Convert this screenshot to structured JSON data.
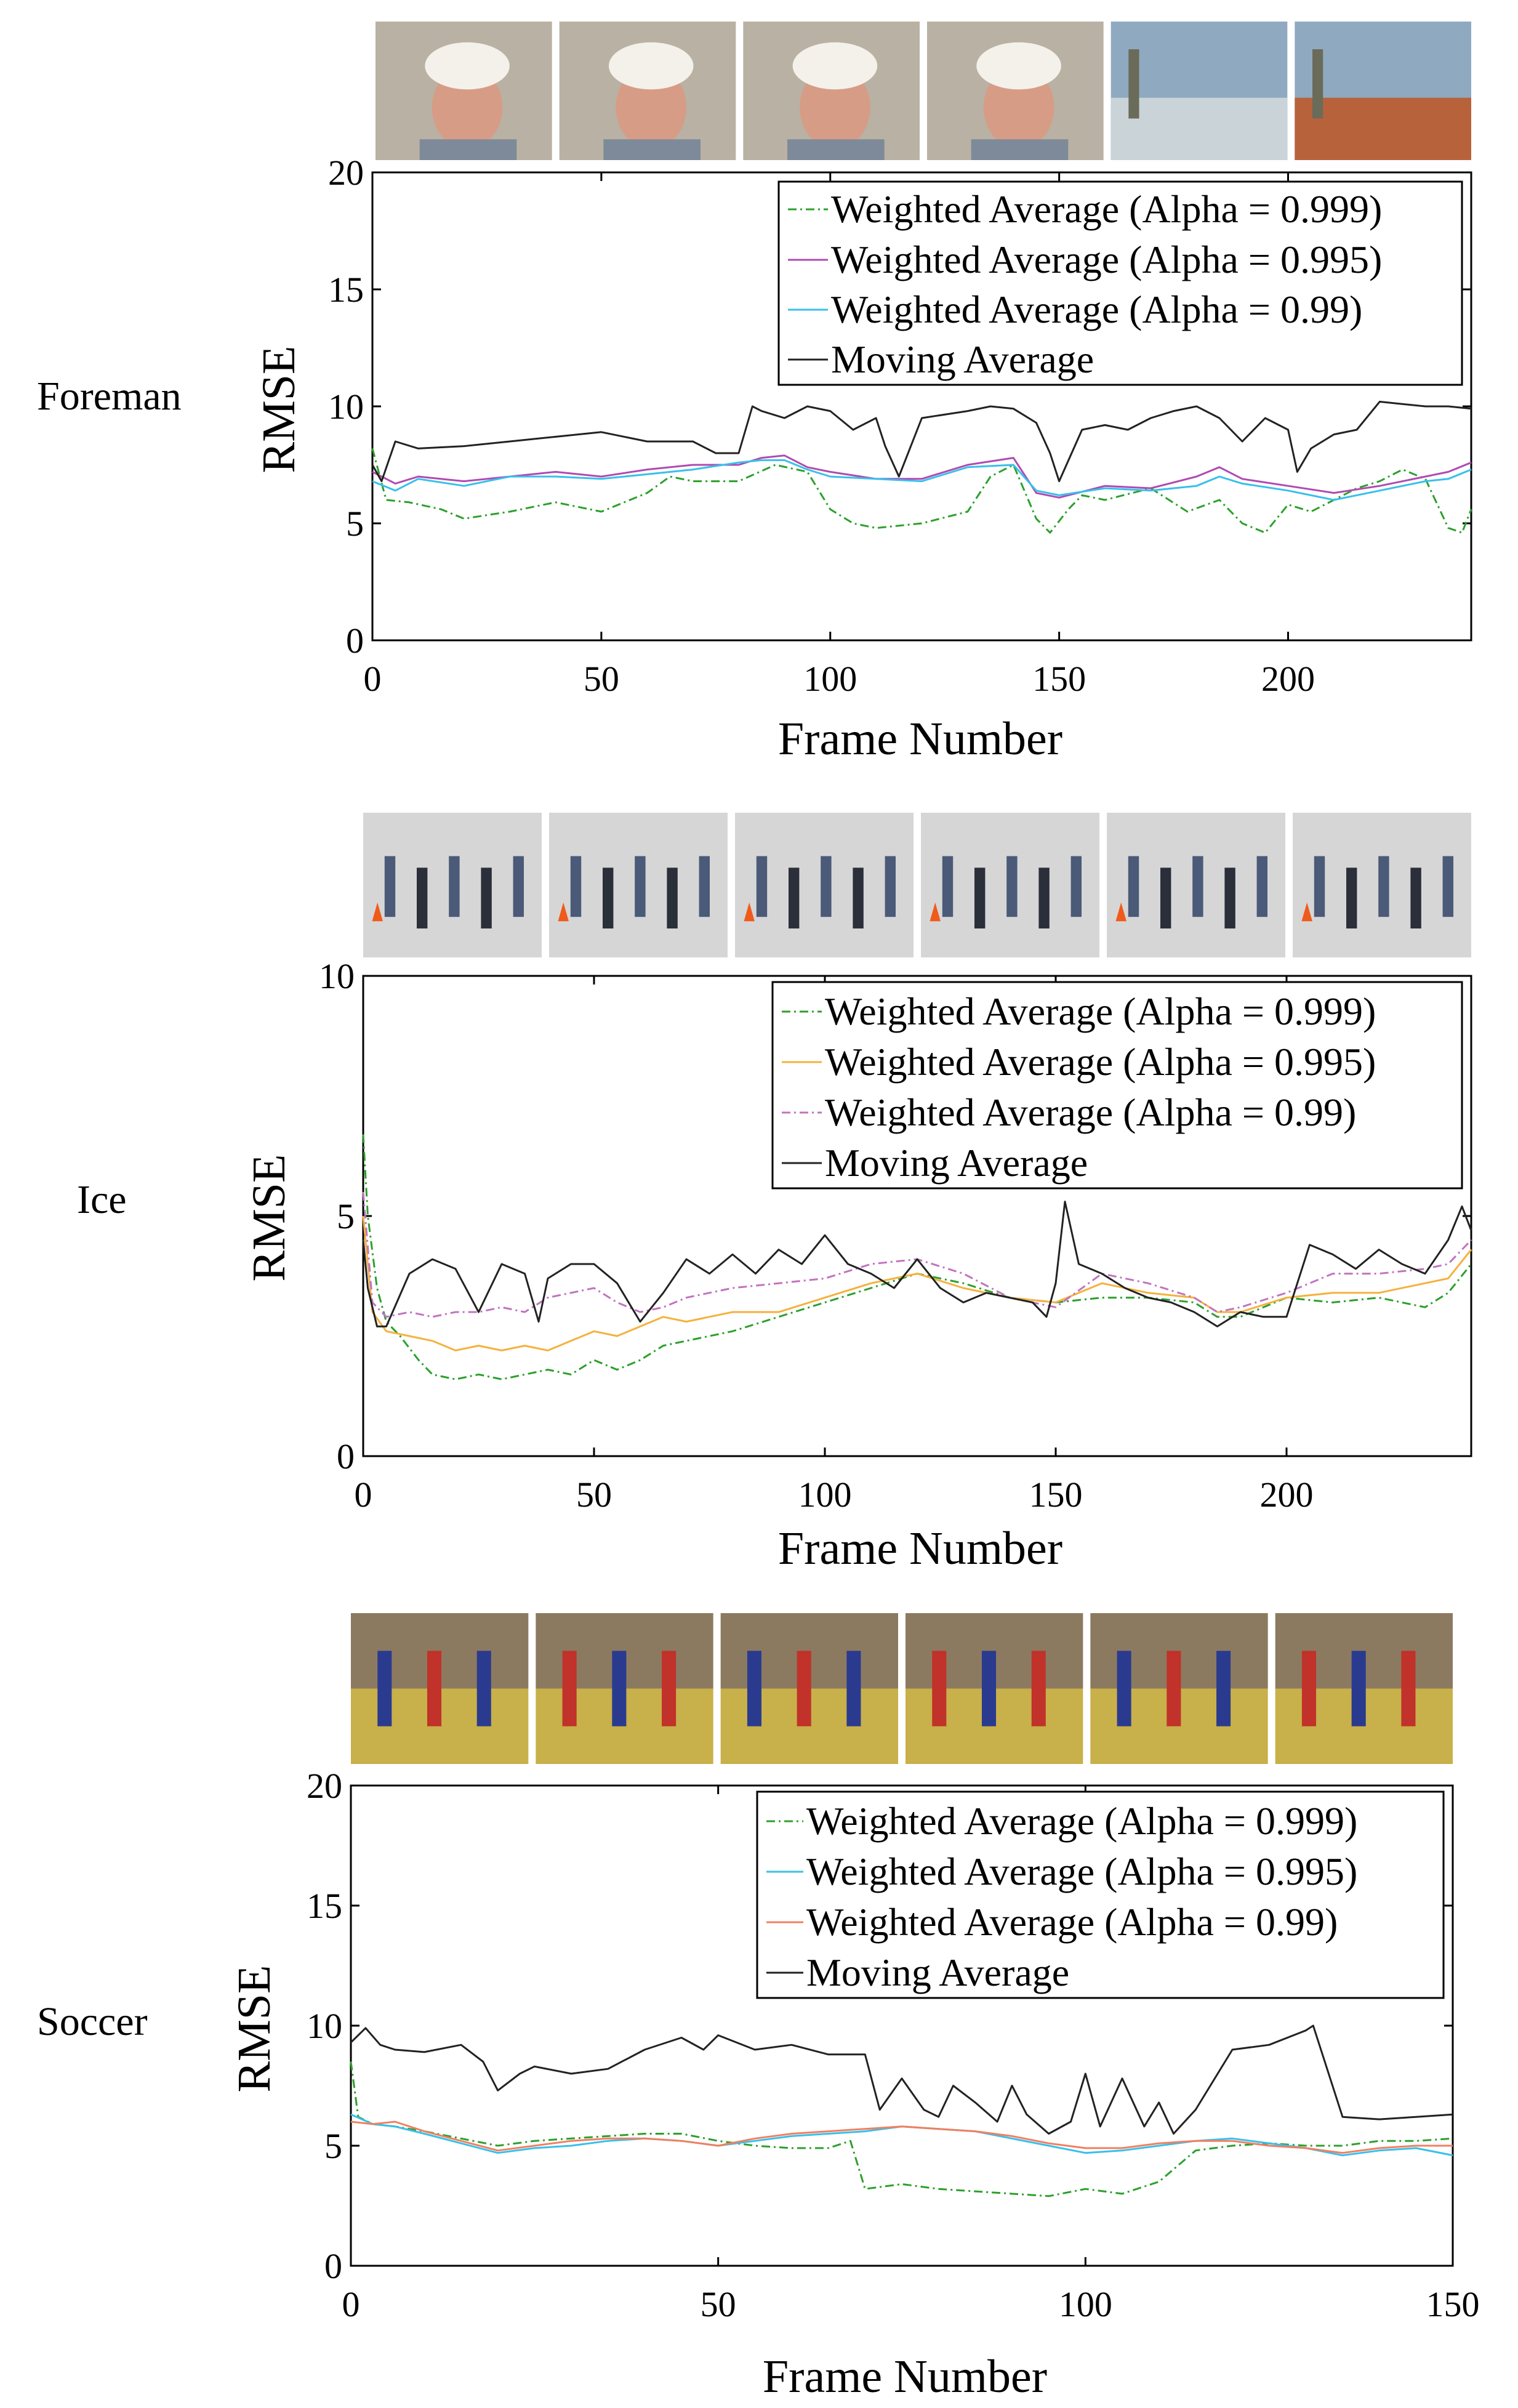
{
  "chart_data": [
    {
      "type": "line",
      "sequence_label": "Foreman",
      "xlabel": "Frame Number",
      "ylabel": "RMSE",
      "xlim": [
        0,
        240
      ],
      "ylim": [
        0,
        20
      ],
      "xticks": [
        0,
        50,
        100,
        150,
        200
      ],
      "yticks": [
        0,
        5,
        10,
        15,
        20
      ],
      "grid": false,
      "legend_position": "top-right",
      "thumbnails": [
        "foreman-frame-1",
        "foreman-frame-2",
        "foreman-frame-3",
        "foreman-frame-4",
        "foreman-frame-5",
        "foreman-frame-6"
      ],
      "series": [
        {
          "name": "Weighted Average (Alpha = 0.999)",
          "color": "#2ca02c",
          "style": "dashdot",
          "x": [
            0,
            3,
            8,
            15,
            20,
            30,
            40,
            50,
            60,
            65,
            70,
            80,
            88,
            95,
            100,
            105,
            110,
            120,
            130,
            135,
            140,
            145,
            148,
            152,
            155,
            160,
            170,
            178,
            185,
            190,
            195,
            200,
            205,
            210,
            215,
            220,
            225,
            230,
            235,
            238,
            240
          ],
          "y": [
            8.2,
            6.0,
            5.9,
            5.6,
            5.2,
            5.5,
            5.9,
            5.5,
            6.3,
            7.0,
            6.8,
            6.8,
            7.5,
            7.2,
            5.6,
            5.0,
            4.8,
            5.0,
            5.5,
            7.0,
            7.5,
            5.2,
            4.6,
            5.6,
            6.2,
            6.0,
            6.5,
            5.5,
            6.0,
            5.0,
            4.6,
            5.8,
            5.5,
            6.0,
            6.5,
            6.8,
            7.3,
            6.9,
            4.8,
            4.6,
            5.6
          ]
        },
        {
          "name": "Weighted Average (Alpha = 0.995)",
          "color": "#b04ab0",
          "style": "solid",
          "x": [
            0,
            5,
            10,
            20,
            30,
            40,
            50,
            60,
            70,
            80,
            85,
            90,
            95,
            100,
            110,
            120,
            130,
            140,
            145,
            150,
            160,
            170,
            180,
            185,
            190,
            200,
            210,
            220,
            230,
            235,
            240
          ],
          "y": [
            7.2,
            6.7,
            7.0,
            6.8,
            7.0,
            7.2,
            7.0,
            7.3,
            7.5,
            7.5,
            7.8,
            7.9,
            7.4,
            7.2,
            6.9,
            6.9,
            7.5,
            7.8,
            6.3,
            6.1,
            6.6,
            6.5,
            7.0,
            7.4,
            6.9,
            6.6,
            6.3,
            6.6,
            7.0,
            7.2,
            7.6
          ]
        },
        {
          "name": "Weighted Average (Alpha = 0.99)",
          "color": "#38c0ea",
          "style": "solid",
          "x": [
            0,
            5,
            10,
            20,
            30,
            40,
            50,
            60,
            70,
            80,
            85,
            90,
            95,
            100,
            110,
            120,
            130,
            140,
            145,
            150,
            160,
            170,
            180,
            185,
            190,
            200,
            210,
            220,
            230,
            235,
            240
          ],
          "y": [
            6.8,
            6.4,
            6.9,
            6.6,
            7.0,
            7.0,
            6.9,
            7.1,
            7.3,
            7.6,
            7.7,
            7.7,
            7.3,
            7.0,
            6.9,
            6.8,
            7.4,
            7.5,
            6.4,
            6.2,
            6.5,
            6.4,
            6.6,
            7.0,
            6.7,
            6.4,
            6.0,
            6.4,
            6.8,
            6.9,
            7.3
          ]
        },
        {
          "name": "Moving Average",
          "color": "#222222",
          "style": "solid",
          "x": [
            0,
            2,
            5,
            10,
            20,
            30,
            40,
            50,
            60,
            70,
            75,
            80,
            83,
            85,
            90,
            95,
            100,
            105,
            110,
            112,
            115,
            120,
            130,
            135,
            140,
            145,
            148,
            150,
            155,
            160,
            165,
            170,
            175,
            180,
            185,
            190,
            195,
            200,
            202,
            205,
            210,
            215,
            220,
            225,
            230,
            235,
            240
          ],
          "y": [
            7.5,
            6.8,
            8.5,
            8.2,
            8.3,
            8.5,
            8.7,
            8.9,
            8.5,
            8.5,
            8.0,
            8.0,
            10.0,
            9.8,
            9.5,
            10.0,
            9.8,
            9.0,
            9.5,
            8.3,
            7.0,
            9.5,
            9.8,
            10.0,
            9.9,
            9.3,
            8.0,
            6.8,
            9.0,
            9.2,
            9.0,
            9.5,
            9.8,
            10.0,
            9.5,
            8.5,
            9.5,
            9.0,
            7.2,
            8.2,
            8.8,
            9.0,
            10.2,
            10.1,
            10.0,
            10.0,
            9.9
          ]
        }
      ]
    },
    {
      "type": "line",
      "sequence_label": "Ice",
      "xlabel": "Frame Number",
      "ylabel": "RMSE",
      "xlim": [
        0,
        240
      ],
      "ylim": [
        0,
        10
      ],
      "xticks": [
        0,
        50,
        100,
        150,
        200
      ],
      "yticks": [
        0,
        5,
        10
      ],
      "grid": false,
      "legend_position": "top-right",
      "thumbnails": [
        "ice-frame-1",
        "ice-frame-2",
        "ice-frame-3",
        "ice-frame-4",
        "ice-frame-5",
        "ice-frame-6"
      ],
      "series": [
        {
          "name": "Weighted Average (Alpha = 0.999)",
          "color": "#2ca02c",
          "style": "dashdot",
          "x": [
            0,
            1,
            3,
            5,
            8,
            12,
            15,
            20,
            25,
            30,
            35,
            40,
            45,
            50,
            55,
            60,
            65,
            70,
            80,
            90,
            100,
            110,
            120,
            130,
            140,
            150,
            160,
            170,
            180,
            185,
            190,
            200,
            210,
            220,
            230,
            235,
            240
          ],
          "y": [
            6.7,
            5.0,
            3.5,
            2.8,
            2.5,
            2.0,
            1.7,
            1.6,
            1.7,
            1.6,
            1.7,
            1.8,
            1.7,
            2.0,
            1.8,
            2.0,
            2.3,
            2.4,
            2.6,
            2.9,
            3.2,
            3.5,
            3.8,
            3.6,
            3.3,
            3.2,
            3.3,
            3.3,
            3.2,
            2.9,
            2.9,
            3.3,
            3.2,
            3.3,
            3.1,
            3.4,
            4.0
          ]
        },
        {
          "name": "Weighted Average (Alpha = 0.995)",
          "color": "#f5b13d",
          "style": "solid",
          "x": [
            0,
            2,
            5,
            10,
            15,
            20,
            25,
            30,
            35,
            40,
            45,
            50,
            55,
            60,
            65,
            70,
            80,
            90,
            100,
            110,
            120,
            130,
            140,
            150,
            160,
            170,
            180,
            185,
            190,
            200,
            210,
            220,
            230,
            235,
            240
          ],
          "y": [
            5.0,
            3.0,
            2.6,
            2.5,
            2.4,
            2.2,
            2.3,
            2.2,
            2.3,
            2.2,
            2.4,
            2.6,
            2.5,
            2.7,
            2.9,
            2.8,
            3.0,
            3.0,
            3.3,
            3.6,
            3.8,
            3.5,
            3.3,
            3.2,
            3.6,
            3.4,
            3.3,
            3.0,
            3.0,
            3.3,
            3.4,
            3.4,
            3.6,
            3.7,
            4.3
          ]
        },
        {
          "name": "Weighted Average (Alpha = 0.99)",
          "color": "#c074c0",
          "style": "dashdot",
          "x": [
            0,
            2,
            5,
            10,
            15,
            20,
            25,
            30,
            35,
            40,
            45,
            50,
            55,
            60,
            65,
            70,
            80,
            90,
            100,
            110,
            120,
            130,
            140,
            150,
            160,
            170,
            180,
            185,
            190,
            200,
            210,
            220,
            230,
            235,
            240
          ],
          "y": [
            5.5,
            3.2,
            2.9,
            3.0,
            2.9,
            3.0,
            3.0,
            3.1,
            3.0,
            3.3,
            3.4,
            3.5,
            3.2,
            3.0,
            3.1,
            3.3,
            3.5,
            3.6,
            3.7,
            4.0,
            4.1,
            3.8,
            3.3,
            3.1,
            3.8,
            3.6,
            3.3,
            3.0,
            3.1,
            3.4,
            3.8,
            3.8,
            3.9,
            4.0,
            4.5
          ]
        },
        {
          "name": "Moving Average",
          "color": "#222222",
          "style": "solid",
          "x": [
            0,
            1,
            3,
            5,
            10,
            15,
            20,
            25,
            30,
            35,
            38,
            40,
            45,
            50,
            55,
            60,
            65,
            70,
            75,
            80,
            85,
            90,
            95,
            100,
            105,
            110,
            115,
            120,
            125,
            130,
            135,
            140,
            145,
            148,
            150,
            152,
            155,
            160,
            165,
            170,
            175,
            180,
            185,
            190,
            195,
            200,
            205,
            210,
            215,
            220,
            225,
            230,
            235,
            238,
            240
          ],
          "y": [
            4.5,
            3.5,
            2.7,
            2.7,
            3.8,
            4.1,
            3.9,
            3.0,
            4.0,
            3.8,
            2.8,
            3.7,
            4.0,
            4.0,
            3.6,
            2.8,
            3.4,
            4.1,
            3.8,
            4.2,
            3.8,
            4.3,
            4.0,
            4.6,
            4.0,
            3.8,
            3.5,
            4.1,
            3.5,
            3.2,
            3.4,
            3.3,
            3.2,
            2.9,
            3.6,
            5.3,
            4.0,
            3.8,
            3.5,
            3.3,
            3.2,
            3.0,
            2.7,
            3.0,
            2.9,
            2.9,
            4.4,
            4.2,
            3.9,
            4.3,
            4.0,
            3.8,
            4.5,
            5.2,
            4.7
          ]
        }
      ]
    },
    {
      "type": "line",
      "sequence_label": "Soccer",
      "xlabel": "Frame Number",
      "ylabel": "RMSE",
      "xlim": [
        0,
        150
      ],
      "ylim": [
        0,
        20
      ],
      "xticks": [
        0,
        50,
        100,
        150
      ],
      "yticks": [
        0,
        5,
        10,
        15,
        20
      ],
      "grid": false,
      "legend_position": "top-right",
      "thumbnails": [
        "soccer-frame-1",
        "soccer-frame-2",
        "soccer-frame-3",
        "soccer-frame-4",
        "soccer-frame-5",
        "soccer-frame-6"
      ],
      "series": [
        {
          "name": "Weighted Average (Alpha = 0.999)",
          "color": "#2ca02c",
          "style": "dashdot",
          "x": [
            0,
            1,
            3,
            6,
            10,
            15,
            20,
            25,
            30,
            35,
            40,
            45,
            50,
            55,
            60,
            65,
            68,
            70,
            75,
            80,
            85,
            90,
            95,
            100,
            105,
            110,
            115,
            120,
            125,
            130,
            135,
            140,
            145,
            150
          ],
          "y": [
            8.5,
            6.2,
            5.9,
            5.8,
            5.6,
            5.3,
            5.0,
            5.2,
            5.3,
            5.4,
            5.5,
            5.5,
            5.2,
            5.0,
            4.9,
            4.9,
            5.2,
            3.2,
            3.4,
            3.2,
            3.1,
            3.0,
            2.9,
            3.2,
            3.0,
            3.5,
            4.8,
            5.0,
            5.1,
            5.0,
            5.0,
            5.2,
            5.2,
            5.3
          ]
        },
        {
          "name": "Weighted Average (Alpha = 0.995)",
          "color": "#38c0ea",
          "style": "solid",
          "x": [
            0,
            3,
            6,
            10,
            15,
            20,
            25,
            30,
            35,
            40,
            45,
            50,
            55,
            60,
            65,
            70,
            75,
            80,
            85,
            90,
            95,
            100,
            105,
            110,
            115,
            120,
            125,
            130,
            135,
            140,
            145,
            150
          ],
          "y": [
            6.3,
            5.9,
            5.8,
            5.5,
            5.1,
            4.7,
            4.9,
            5.0,
            5.2,
            5.3,
            5.2,
            5.0,
            5.2,
            5.4,
            5.5,
            5.6,
            5.8,
            5.7,
            5.6,
            5.3,
            5.0,
            4.7,
            4.8,
            5.0,
            5.2,
            5.3,
            5.1,
            4.9,
            4.6,
            4.8,
            4.9,
            4.6
          ]
        },
        {
          "name": "Weighted Average (Alpha = 0.99)",
          "color": "#f08060",
          "style": "solid",
          "x": [
            0,
            3,
            6,
            10,
            15,
            20,
            25,
            30,
            35,
            40,
            45,
            50,
            55,
            60,
            65,
            70,
            75,
            80,
            85,
            90,
            95,
            100,
            105,
            110,
            115,
            120,
            125,
            130,
            135,
            140,
            145,
            150
          ],
          "y": [
            6.0,
            5.9,
            6.0,
            5.6,
            5.2,
            4.8,
            5.0,
            5.2,
            5.3,
            5.3,
            5.2,
            5.0,
            5.3,
            5.5,
            5.6,
            5.7,
            5.8,
            5.7,
            5.6,
            5.4,
            5.1,
            4.9,
            4.9,
            5.1,
            5.2,
            5.2,
            5.0,
            4.9,
            4.7,
            4.9,
            5.0,
            5.0
          ]
        },
        {
          "name": "Moving Average",
          "color": "#222222",
          "style": "solid",
          "x": [
            0,
            2,
            4,
            6,
            10,
            15,
            18,
            20,
            23,
            25,
            30,
            35,
            40,
            45,
            48,
            50,
            55,
            60,
            65,
            70,
            72,
            75,
            78,
            80,
            82,
            85,
            88,
            90,
            92,
            95,
            98,
            100,
            102,
            105,
            108,
            110,
            112,
            115,
            120,
            125,
            130,
            131,
            135,
            140,
            145,
            150
          ],
          "y": [
            9.3,
            9.9,
            9.2,
            9.0,
            8.9,
            9.2,
            8.5,
            7.3,
            8.0,
            8.3,
            8.0,
            8.2,
            9.0,
            9.5,
            9.0,
            9.6,
            9.0,
            9.2,
            8.8,
            8.8,
            6.5,
            7.8,
            6.5,
            6.2,
            7.5,
            6.8,
            6.0,
            7.5,
            6.3,
            5.5,
            6.0,
            8.0,
            5.8,
            7.8,
            5.8,
            6.8,
            5.5,
            6.5,
            9.0,
            9.2,
            9.8,
            10.0,
            6.2,
            6.1,
            6.2,
            6.3
          ]
        }
      ]
    }
  ]
}
